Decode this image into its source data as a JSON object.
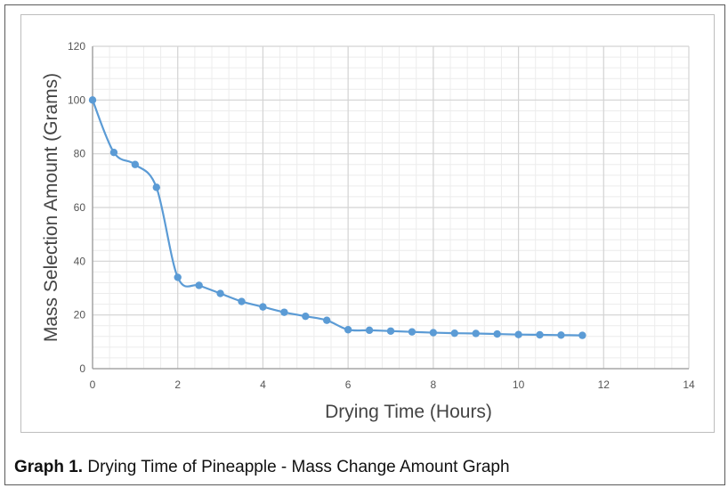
{
  "caption": {
    "label": "Graph 1.",
    "text": "Drying Time of Pineapple - Mass Change Amount Graph"
  },
  "chart_data": {
    "type": "line",
    "title": "",
    "xlabel": "Drying Time (Hours)",
    "ylabel": "Mass Selection Amount (Grams)",
    "xlim": [
      0,
      14
    ],
    "ylim": [
      0,
      120
    ],
    "xticks": [
      0,
      2,
      4,
      6,
      8,
      10,
      12,
      14
    ],
    "yticks": [
      0,
      20,
      40,
      60,
      80,
      100,
      120
    ],
    "grid": true,
    "smoothed": true,
    "series_color": "#5b9bd5",
    "series": [
      {
        "x": [
          0,
          0.5,
          1,
          1.5,
          2,
          2.5,
          3,
          3.5,
          4,
          4.5,
          5,
          5.5,
          6,
          6.5,
          7,
          7.5,
          8,
          8.5,
          9,
          9.5,
          10,
          10.5,
          11,
          11.5
        ],
        "y": [
          100,
          80.5,
          76,
          67.5,
          34,
          31,
          28,
          25,
          23,
          21,
          19.5,
          18,
          14.5,
          14.3,
          14,
          13.7,
          13.4,
          13.2,
          13.1,
          12.9,
          12.7,
          12.6,
          12.5,
          12.4
        ]
      }
    ]
  }
}
